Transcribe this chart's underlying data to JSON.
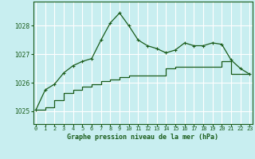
{
  "title": "Graphe pression niveau de la mer (hPa)",
  "background_color": "#c8eef0",
  "grid_color": "#aadddd",
  "line_color": "#1a5c1a",
  "line1_x": [
    0,
    1,
    2,
    3,
    4,
    5,
    6,
    7,
    8,
    9,
    10,
    11,
    12,
    13,
    14,
    15,
    16,
    17,
    18,
    19,
    20,
    21,
    22,
    23
  ],
  "line1_y": [
    1025.05,
    1025.75,
    1025.95,
    1026.35,
    1026.6,
    1026.75,
    1026.85,
    1027.5,
    1028.1,
    1028.45,
    1028.0,
    1027.5,
    1027.3,
    1027.2,
    1027.05,
    1027.15,
    1027.4,
    1027.3,
    1027.3,
    1027.4,
    1027.35,
    1026.8,
    1026.5,
    1026.3
  ],
  "line2_x": [
    0,
    1,
    2,
    3,
    4,
    5,
    6,
    7,
    8,
    9,
    10,
    14,
    15,
    20,
    21,
    23
  ],
  "line2_y": [
    1025.05,
    1025.15,
    1025.4,
    1025.65,
    1025.75,
    1025.85,
    1025.95,
    1026.05,
    1026.1,
    1026.2,
    1026.25,
    1026.5,
    1026.55,
    1026.75,
    1026.3,
    1026.3
  ],
  "yticks": [
    1025,
    1026,
    1027,
    1028
  ],
  "xticks": [
    0,
    1,
    2,
    3,
    4,
    5,
    6,
    7,
    8,
    9,
    10,
    11,
    12,
    13,
    14,
    15,
    16,
    17,
    18,
    19,
    20,
    21,
    22,
    23
  ],
  "xlim": [
    -0.3,
    23.3
  ],
  "ylim": [
    1024.55,
    1028.85
  ]
}
